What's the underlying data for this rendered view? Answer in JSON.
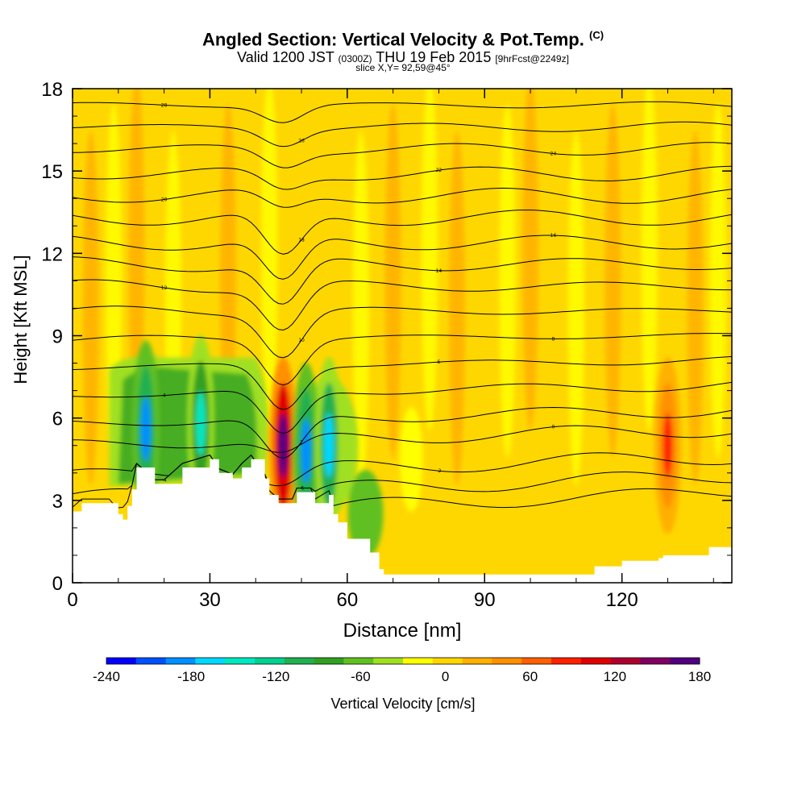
{
  "title": {
    "main": "Angled Section: Vertical Velocity & Pot.Temp.",
    "tag": "(C)",
    "valid_pre": "Valid 1200 JST",
    "valid_utc": "(0300Z)",
    "valid_date": "THU 19 Feb 2015",
    "valid_fcst": "[9hrFcst@2249z]",
    "slice": "slice X,Y= 92,59@45°"
  },
  "colorbar": {
    "label": "Vertical Velocity [cm/s]",
    "tick_labels": [
      "-240",
      "-180",
      "-120",
      "-60",
      "0",
      "60",
      "120",
      "180"
    ],
    "colors": [
      "#0000ff",
      "#0050ff",
      "#0090ff",
      "#00d8ff",
      "#00e8c0",
      "#00d090",
      "#20b050",
      "#30a020",
      "#60c020",
      "#a0e020",
      "#ffff00",
      "#ffd700",
      "#ffb000",
      "#ff9000",
      "#ff6000",
      "#ff2000",
      "#e00000",
      "#b00030",
      "#800060",
      "#500080"
    ]
  },
  "chart_data": {
    "type": "heatmap",
    "xlabel": "Distance [nm]",
    "ylabel": "Height [Kft MSL]",
    "xlim": [
      0,
      144
    ],
    "ylim": [
      0,
      18
    ],
    "xticks": [
      0,
      30,
      60,
      90,
      120
    ],
    "yticks": [
      0,
      3,
      6,
      9,
      12,
      15,
      18
    ],
    "field": "Vertical Velocity [cm/s]",
    "colorbar_range": [
      -240,
      180
    ],
    "contour_field": "Potential temperature [C]",
    "features": [
      {
        "x": 16,
        "y": 5.6,
        "w": -185
      },
      {
        "x": 28,
        "y": 5.8,
        "w": -150
      },
      {
        "x": 46,
        "y": 5.0,
        "w": 165
      },
      {
        "x": 51,
        "y": 4.8,
        "w": -190
      },
      {
        "x": 56,
        "y": 5.0,
        "w": -170
      },
      {
        "x": 130,
        "y": 5.0,
        "w": 75
      }
    ],
    "terrain_top": [
      [
        0,
        2.6
      ],
      [
        2,
        2.9
      ],
      [
        8,
        2.9
      ],
      [
        10,
        2.5
      ],
      [
        11,
        2.3
      ],
      [
        12,
        2.8
      ],
      [
        13,
        3.4
      ],
      [
        14,
        4.2
      ],
      [
        18,
        3.6
      ],
      [
        20,
        3.6
      ],
      [
        24,
        4.2
      ],
      [
        30,
        4.5
      ],
      [
        32,
        4.0
      ],
      [
        35,
        3.8
      ],
      [
        37,
        4.2
      ],
      [
        39,
        4.5
      ],
      [
        42,
        3.8
      ],
      [
        43,
        3.2
      ],
      [
        45,
        2.9
      ],
      [
        48,
        2.9
      ],
      [
        49,
        3.3
      ],
      [
        52,
        3.3
      ],
      [
        53,
        2.9
      ],
      [
        56,
        3.2
      ],
      [
        57,
        2.5
      ],
      [
        58,
        2.2
      ],
      [
        60,
        1.6
      ],
      [
        64,
        1.6
      ],
      [
        65,
        1.1
      ],
      [
        67,
        0.5
      ],
      [
        68,
        0.3
      ],
      [
        113,
        0.3
      ],
      [
        114,
        0.6
      ],
      [
        119,
        0.6
      ],
      [
        120,
        0.8
      ],
      [
        128,
        0.9
      ],
      [
        129,
        1.0
      ],
      [
        138,
        1.0
      ],
      [
        139,
        1.3
      ],
      [
        144,
        1.3
      ]
    ],
    "isentropes": [
      {
        "label": "-6",
        "base": 3.3
      },
      {
        "label": "-4",
        "base": 3.9
      },
      {
        "label": "-2",
        "base": 4.6
      },
      {
        "label": "0",
        "base": 5.6
      },
      {
        "label": "2",
        "base": 6.3
      },
      {
        "label": "4",
        "base": 7.2
      },
      {
        "label": "6",
        "base": 8.1
      },
      {
        "label": "8",
        "base": 9.0
      },
      {
        "label": "10",
        "base": 9.9
      },
      {
        "label": "12",
        "base": 10.8
      },
      {
        "label": "14",
        "base": 11.6
      },
      {
        "label": "16",
        "base": 12.4
      },
      {
        "label": "18",
        "base": 13.3
      },
      {
        "label": "20",
        "base": 14.1
      },
      {
        "label": "22",
        "base": 14.9
      },
      {
        "label": "24",
        "base": 15.8
      },
      {
        "label": "26",
        "base": 16.6
      },
      {
        "label": "28",
        "base": 17.4
      }
    ]
  }
}
